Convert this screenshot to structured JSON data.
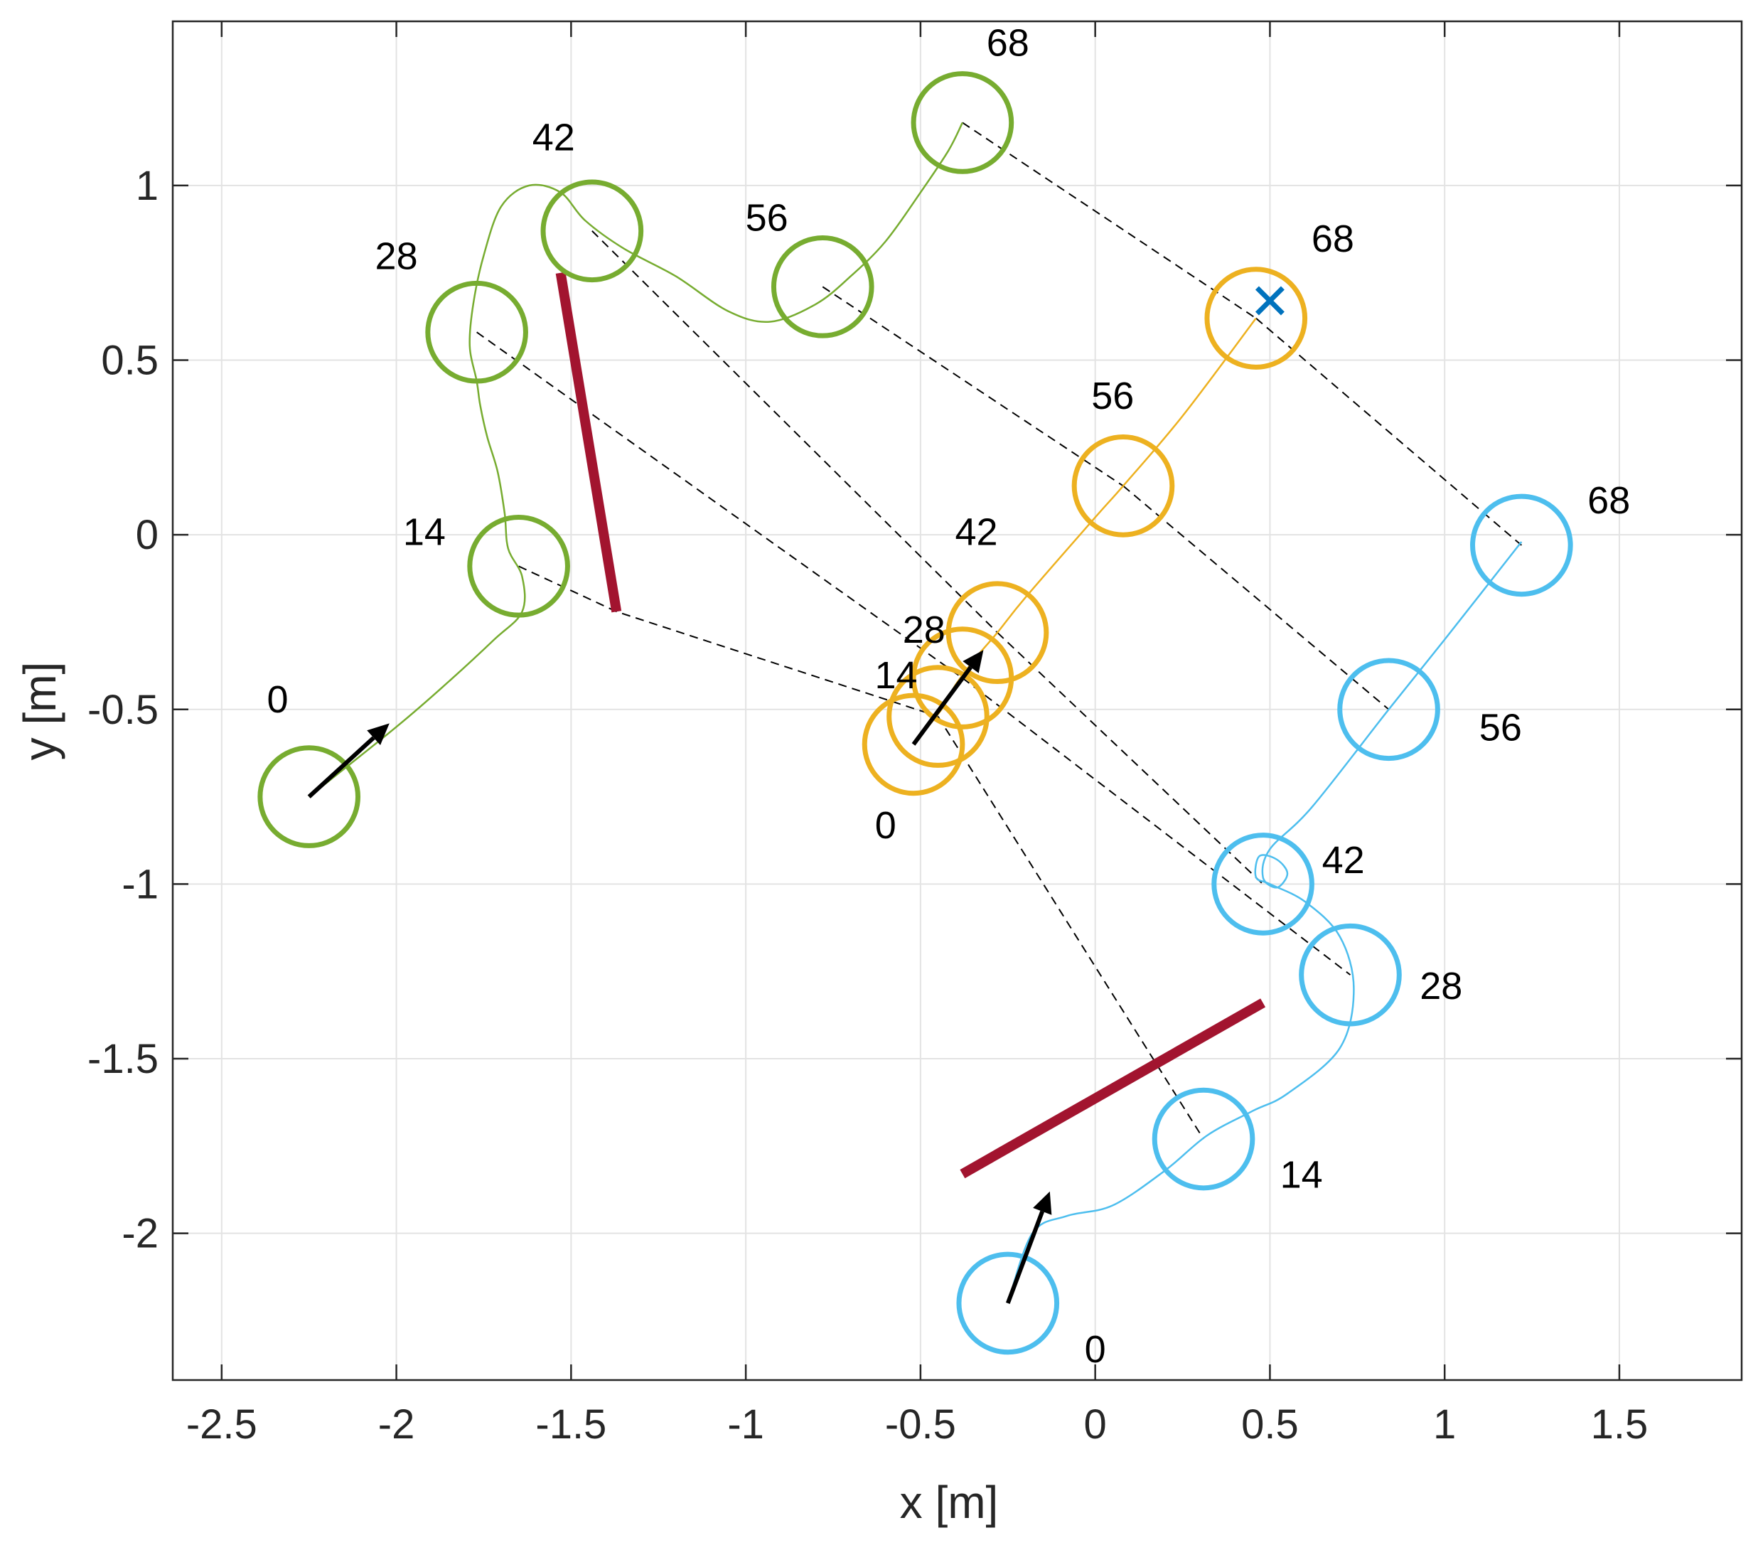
{
  "chart_data": {
    "type": "line",
    "title": "",
    "xlabel": "x [m]",
    "ylabel": "y [m]",
    "xlim": [
      -2.64,
      1.85
    ],
    "ylim": [
      -2.42,
      1.47
    ],
    "xticks": [
      -2.5,
      -2,
      -1.5,
      -1,
      -0.5,
      0,
      0.5,
      1,
      1.5
    ],
    "xtick_labels": [
      "-2.5",
      "-2",
      "-1.5",
      "-1",
      "-0.5",
      "0",
      "0.5",
      "1",
      "1.5"
    ],
    "yticks": [
      -2,
      -1.5,
      -1,
      -0.5,
      0,
      0.5,
      1
    ],
    "ytick_labels": [
      "-2",
      "-1.5",
      "-1",
      "-0.5",
      "0",
      "0.5",
      "1"
    ],
    "grid": true,
    "robot_radius": 0.14,
    "colors": {
      "green": "#77ac30",
      "orange": "#edb120",
      "blue": "#4dbeee",
      "obstacle": "#a2142f",
      "goal": "#0072bd",
      "arrow": "#000000",
      "link": "#000000"
    },
    "robots": [
      {
        "name": "green",
        "color": "#77ac30",
        "path": [
          [
            -2.25,
            -0.75
          ],
          [
            -2.0,
            -0.55
          ],
          [
            -1.85,
            -0.42
          ],
          [
            -1.72,
            -0.3
          ],
          [
            -1.64,
            -0.22
          ],
          [
            -1.64,
            -0.12
          ],
          [
            -1.68,
            -0.04
          ],
          [
            -1.69,
            0.06
          ],
          [
            -1.71,
            0.18
          ],
          [
            -1.74,
            0.28
          ],
          [
            -1.76,
            0.37
          ],
          [
            -1.77,
            0.44
          ],
          [
            -1.79,
            0.54
          ],
          [
            -1.78,
            0.66
          ],
          [
            -1.75,
            0.8
          ],
          [
            -1.7,
            0.94
          ],
          [
            -1.62,
            1.0
          ],
          [
            -1.53,
            0.98
          ],
          [
            -1.46,
            0.9
          ],
          [
            -1.35,
            0.82
          ],
          [
            -1.2,
            0.74
          ],
          [
            -1.05,
            0.64
          ],
          [
            -0.93,
            0.61
          ],
          [
            -0.8,
            0.66
          ],
          [
            -0.7,
            0.74
          ],
          [
            -0.6,
            0.84
          ],
          [
            -0.5,
            0.98
          ],
          [
            -0.42,
            1.1
          ],
          [
            -0.38,
            1.18
          ]
        ],
        "poses": [
          {
            "label": "0",
            "x": -2.25,
            "y": -0.75
          },
          {
            "label": "14",
            "x": -1.65,
            "y": -0.09
          },
          {
            "label": "28",
            "x": -1.77,
            "y": 0.58
          },
          {
            "label": "42",
            "x": -1.44,
            "y": 0.87
          },
          {
            "label": "56",
            "x": -0.78,
            "y": 0.71
          },
          {
            "label": "68",
            "x": -0.38,
            "y": 1.18
          }
        ],
        "start_arrow": {
          "from": [
            -2.25,
            -0.75
          ],
          "to": [
            -2.02,
            -0.54
          ]
        }
      },
      {
        "name": "orange",
        "color": "#edb120",
        "path": [
          [
            -0.52,
            -0.6
          ],
          [
            -0.44,
            -0.5
          ],
          [
            -0.4,
            -0.43
          ],
          [
            -0.34,
            -0.35
          ],
          [
            -0.28,
            -0.28
          ],
          [
            -0.2,
            -0.18
          ],
          [
            0.0,
            0.05
          ],
          [
            0.08,
            0.14
          ],
          [
            0.25,
            0.34
          ],
          [
            0.46,
            0.62
          ]
        ],
        "poses": [
          {
            "label": "0",
            "x": -0.52,
            "y": -0.6
          },
          {
            "label": "14",
            "x": -0.45,
            "y": -0.52
          },
          {
            "label": "28",
            "x": -0.38,
            "y": -0.41
          },
          {
            "label": "42",
            "x": -0.28,
            "y": -0.28
          },
          {
            "label": "56",
            "x": 0.08,
            "y": 0.14
          },
          {
            "label": "68",
            "x": 0.46,
            "y": 0.62
          }
        ],
        "start_arrow": {
          "from": [
            -0.52,
            -0.6
          ],
          "to": [
            -0.32,
            -0.33
          ]
        }
      },
      {
        "name": "blue",
        "color": "#4dbeee",
        "path": [
          [
            -0.25,
            -2.2
          ],
          [
            -0.18,
            -2.0
          ],
          [
            -0.08,
            -1.95
          ],
          [
            0.05,
            -1.92
          ],
          [
            0.2,
            -1.82
          ],
          [
            0.32,
            -1.72
          ],
          [
            0.45,
            -1.65
          ],
          [
            0.55,
            -1.6
          ],
          [
            0.7,
            -1.47
          ],
          [
            0.74,
            -1.3
          ],
          [
            0.7,
            -1.15
          ],
          [
            0.6,
            -1.05
          ],
          [
            0.5,
            -1.0
          ],
          [
            0.46,
            -0.98
          ],
          [
            0.47,
            -0.92
          ],
          [
            0.52,
            -0.93
          ],
          [
            0.55,
            -0.97
          ],
          [
            0.52,
            -1.01
          ],
          [
            0.48,
            -0.98
          ],
          [
            0.5,
            -0.9
          ],
          [
            0.62,
            -0.78
          ],
          [
            0.84,
            -0.5
          ],
          [
            1.0,
            -0.3
          ],
          [
            1.22,
            -0.02
          ]
        ],
        "poses": [
          {
            "label": "0",
            "x": -0.25,
            "y": -2.2
          },
          {
            "label": "14",
            "x": 0.31,
            "y": -1.73
          },
          {
            "label": "28",
            "x": 0.73,
            "y": -1.26
          },
          {
            "label": "42",
            "x": 0.48,
            "y": -1.0
          },
          {
            "label": "56",
            "x": 0.84,
            "y": -0.5
          },
          {
            "label": "68",
            "x": 1.22,
            "y": -0.03
          }
        ],
        "start_arrow": {
          "from": [
            -0.25,
            -2.2
          ],
          "to": [
            -0.13,
            -1.88
          ]
        }
      }
    ],
    "pose_labels": [
      {
        "text": "0",
        "x": -2.34,
        "y": -0.48
      },
      {
        "text": "14",
        "x": -1.92,
        "y": 0.0
      },
      {
        "text": "28",
        "x": -2.0,
        "y": 0.79
      },
      {
        "text": "42",
        "x": -1.55,
        "y": 1.13
      },
      {
        "text": "56",
        "x": -0.94,
        "y": 0.9
      },
      {
        "text": "68",
        "x": -0.25,
        "y": 1.4
      },
      {
        "text": "0",
        "x": -0.6,
        "y": -0.84
      },
      {
        "text": "14",
        "x": -0.57,
        "y": -0.41
      },
      {
        "text": "28",
        "x": -0.49,
        "y": -0.28
      },
      {
        "text": "42",
        "x": -0.34,
        "y": 0.0
      },
      {
        "text": "56",
        "x": 0.05,
        "y": 0.39
      },
      {
        "text": "68",
        "x": 0.68,
        "y": 0.84
      },
      {
        "text": "0",
        "x": 0.0,
        "y": -2.34
      },
      {
        "text": "14",
        "x": 0.59,
        "y": -1.84
      },
      {
        "text": "28",
        "x": 0.99,
        "y": -1.3
      },
      {
        "text": "42",
        "x": 0.71,
        "y": -0.94
      },
      {
        "text": "56",
        "x": 1.16,
        "y": -0.56
      },
      {
        "text": "68",
        "x": 1.47,
        "y": 0.09
      }
    ],
    "links": [
      {
        "from": [
          -1.65,
          -0.09
        ],
        "via": [
          -1.37,
          -0.22
        ],
        "to": [
          -0.45,
          -0.52
        ]
      },
      {
        "from": [
          -0.45,
          -0.52
        ],
        "to": [
          0.31,
          -1.73
        ]
      },
      {
        "from": [
          -1.77,
          0.58
        ],
        "to": [
          -0.38,
          -0.41
        ]
      },
      {
        "from": [
          -0.38,
          -0.41
        ],
        "to": [
          0.73,
          -1.26
        ]
      },
      {
        "from": [
          -1.44,
          0.87
        ],
        "to": [
          -0.28,
          -0.28
        ]
      },
      {
        "from": [
          -0.28,
          -0.28
        ],
        "to": [
          0.48,
          -1.0
        ]
      },
      {
        "from": [
          -0.78,
          0.71
        ],
        "to": [
          0.08,
          0.14
        ]
      },
      {
        "from": [
          0.08,
          0.14
        ],
        "to": [
          0.84,
          -0.5
        ]
      },
      {
        "from": [
          -0.38,
          1.18
        ],
        "to": [
          0.46,
          0.62
        ]
      },
      {
        "from": [
          0.46,
          0.62
        ],
        "to": [
          1.22,
          -0.03
        ]
      }
    ],
    "obstacles": [
      {
        "from": [
          -1.53,
          0.75
        ],
        "to": [
          -1.37,
          -0.22
        ]
      },
      {
        "from": [
          -0.38,
          -1.83
        ],
        "to": [
          0.48,
          -1.34
        ]
      }
    ],
    "goal": {
      "x": 0.5,
      "y": 0.67,
      "marker": "x"
    }
  }
}
